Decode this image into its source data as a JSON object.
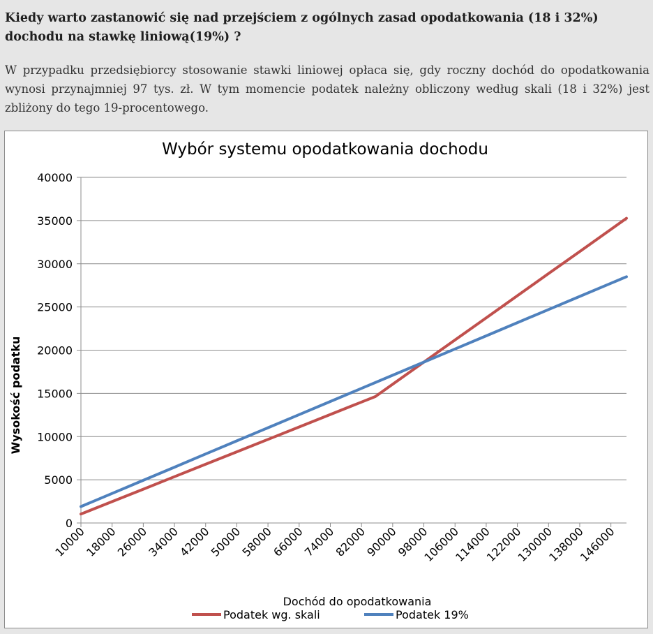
{
  "article": {
    "heading": "Kiedy warto zastanowić się nad przejściem z ogólnych zasad opodatkowania (18 i 32%) dochodu na stawkę liniową(19%) ?",
    "paragraph": "W przypadku przedsiębiorcy stosowanie stawki liniowej opłaca się, gdy roczny dochód do opodatkowania wynosi przynajmniej 97 tys. zł. W tym momencie podatek należny obliczony według skali (18 i 32%) jest zbliżony do tego 19-procentowego."
  },
  "chart_data": {
    "type": "line",
    "title": "Wybór systemu opodatkowania dochodu",
    "xlabel": "Dochód do opodatkowania",
    "ylabel": "Wysokość podatku",
    "x_tick_labels": [
      "10000",
      "18000",
      "26000",
      "34000",
      "42000",
      "50000",
      "58000",
      "66000",
      "74000",
      "82000",
      "90000",
      "98000",
      "106000",
      "114000",
      "122000",
      "130000",
      "138000",
      "146000"
    ],
    "y_tick_labels": [
      "0",
      "5000",
      "10000",
      "15000",
      "20000",
      "25000",
      "30000",
      "35000",
      "40000"
    ],
    "xlim": [
      10000,
      150000
    ],
    "ylim": [
      0,
      40000
    ],
    "grid": "horizontal",
    "legend_position": "bottom",
    "series": [
      {
        "name": "Podatek wg. skali",
        "color": "#c0504d",
        "x": [
          10000,
          18000,
          26000,
          34000,
          42000,
          50000,
          58000,
          66000,
          74000,
          82000,
          85528,
          90000,
          98000,
          106000,
          114000,
          122000,
          130000,
          138000,
          146000,
          150000
        ],
        "y": [
          1034,
          2474,
          3914,
          5354,
          6794,
          8234,
          9674,
          11114,
          12554,
          13994,
          14630,
          16061,
          18621,
          21181,
          23741,
          26301,
          28861,
          31421,
          33981,
          35261
        ]
      },
      {
        "name": "Podatek 19%",
        "color": "#4f81bd",
        "x": [
          10000,
          18000,
          26000,
          34000,
          42000,
          50000,
          58000,
          66000,
          74000,
          82000,
          90000,
          98000,
          106000,
          114000,
          122000,
          130000,
          138000,
          146000,
          150000
        ],
        "y": [
          1900,
          3420,
          4940,
          6460,
          7980,
          9500,
          11020,
          12540,
          14060,
          15580,
          17100,
          18620,
          20140,
          21660,
          23180,
          24700,
          26220,
          27740,
          28500
        ]
      }
    ]
  }
}
